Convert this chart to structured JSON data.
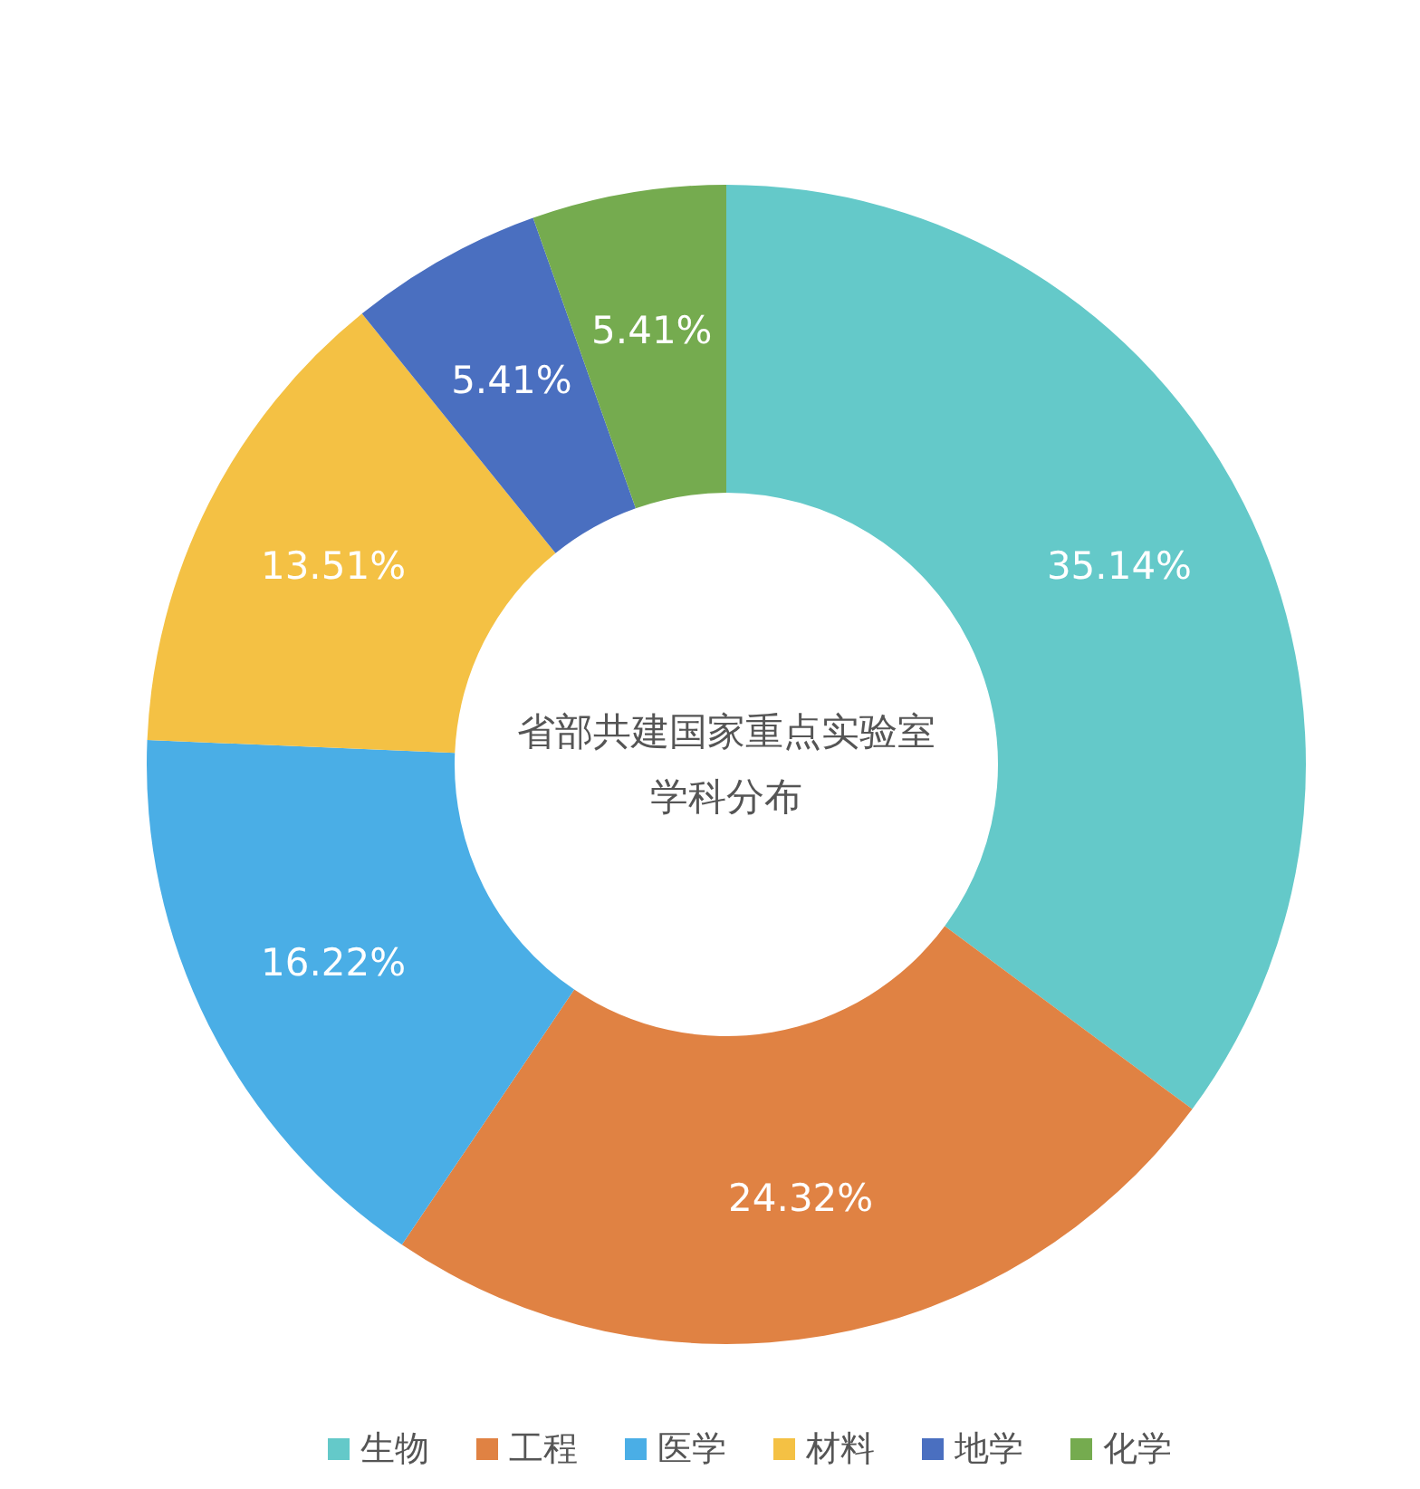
{
  "chart_data": {
    "type": "donut",
    "title": "省部共建国家重点实验室学科分布",
    "categories": [
      "生物",
      "工程",
      "医学",
      "材料",
      "地学",
      "化学"
    ],
    "values": [
      35.14,
      24.32,
      16.22,
      13.51,
      5.41,
      5.41
    ],
    "value_labels": [
      "35.14%",
      "24.32%",
      "16.22%",
      "13.51%",
      "5.41%",
      "5.41%"
    ],
    "colors": [
      "#64c9c9",
      "#e08243",
      "#4aaee6",
      "#f4c144",
      "#4a6fc0",
      "#75ab4f"
    ],
    "legend": "bottom"
  }
}
